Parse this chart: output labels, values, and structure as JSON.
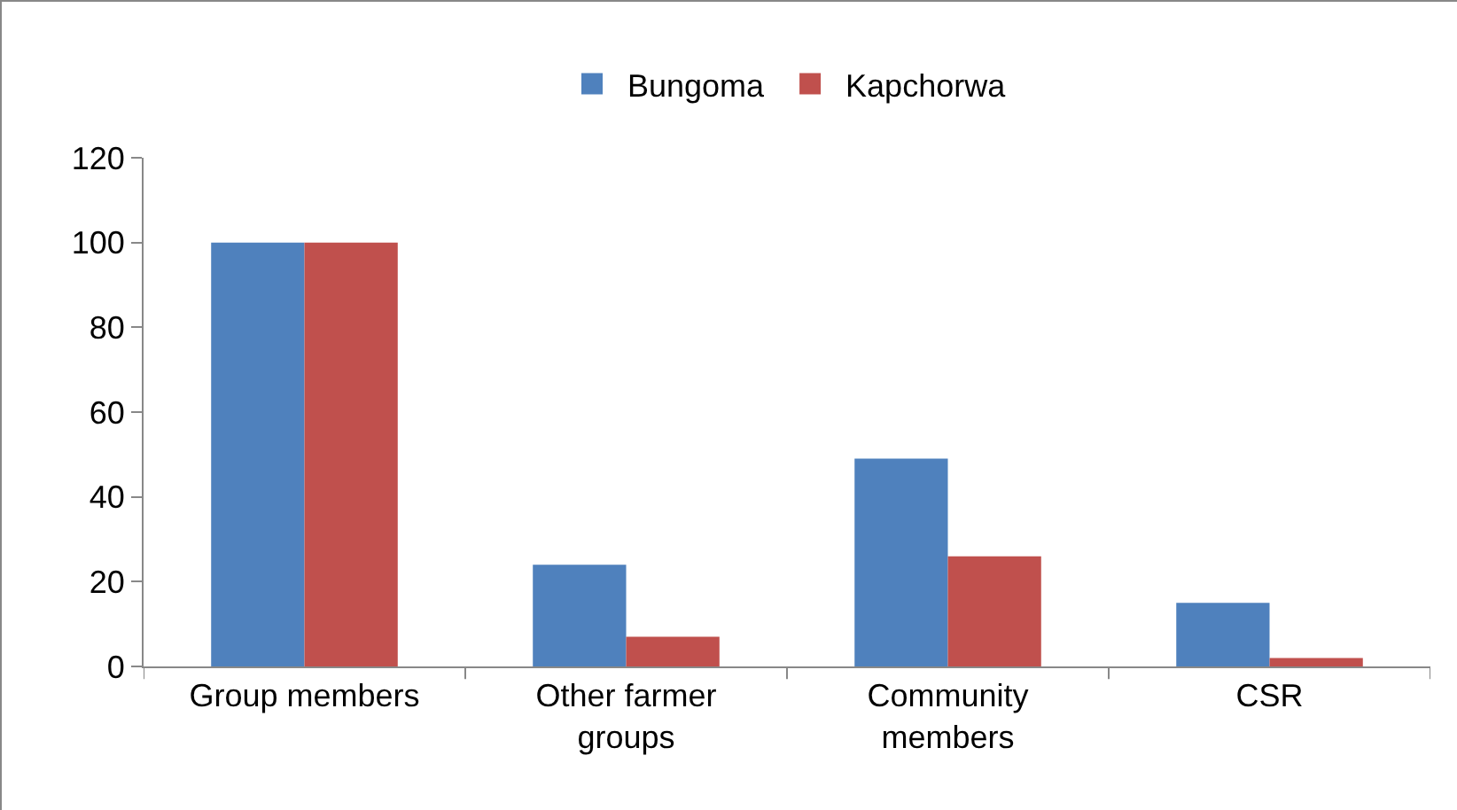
{
  "chart_data": {
    "type": "bar",
    "categories": [
      "Group members",
      "Other farmer groups",
      "Community members",
      "CSR"
    ],
    "series": [
      {
        "name": "Bungoma",
        "color": "#4f81bd",
        "values": [
          100,
          24,
          49,
          15
        ]
      },
      {
        "name": "Kapchorwa",
        "color": "#c0504d",
        "values": [
          100,
          7,
          26,
          2
        ]
      }
    ],
    "ylim": [
      0,
      120
    ],
    "yticks": [
      0,
      20,
      40,
      60,
      80,
      100,
      120
    ],
    "grid": false,
    "legend": "top"
  }
}
